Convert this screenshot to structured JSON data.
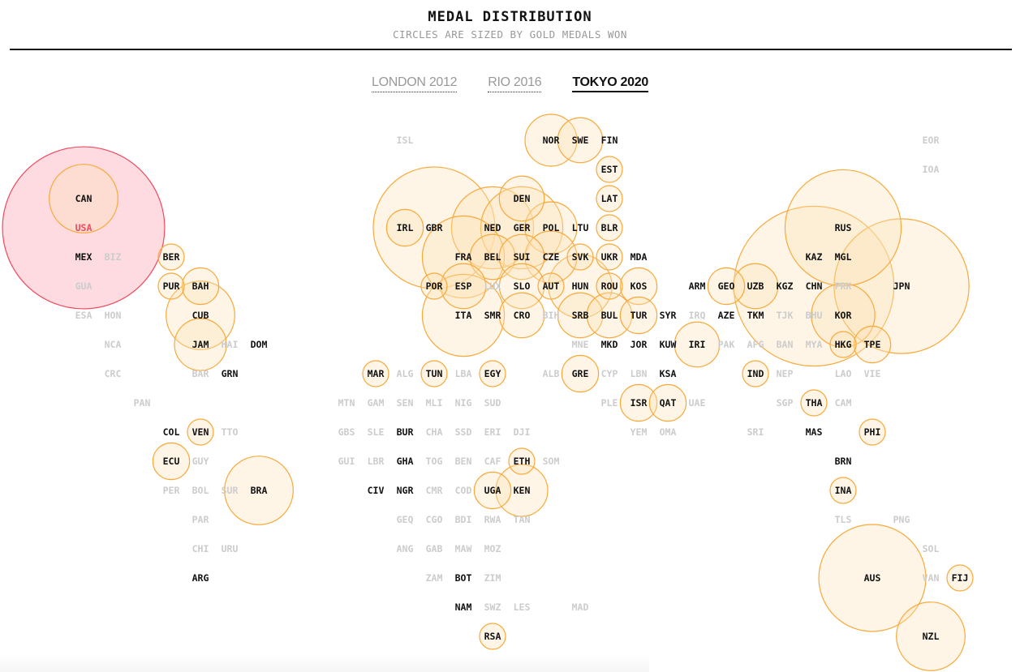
{
  "header": {
    "title": "MEDAL DISTRIBUTION",
    "subtitle": "CIRCLES ARE SIZED BY GOLD MEDALS WON"
  },
  "tabs": [
    {
      "label": "LONDON 2012",
      "active": false
    },
    {
      "label": "RIO 2016",
      "active": false
    },
    {
      "label": "TOKYO 2020",
      "active": true
    }
  ],
  "colors": {
    "circle_stroke": "#f8a93a",
    "circle_fill": "#fde3b8",
    "highlight_stroke": "#ef4a5f",
    "highlight_fill": "#fdd5da",
    "highlight_text": "#ef4a5f",
    "medal_text": "#111111",
    "no_medal_text": "#cccccc"
  },
  "chart_data": {
    "type": "tile-map bubble",
    "title": "MEDAL DISTRIBUTION",
    "subtitle": "CIRCLES ARE SIZED BY GOLD MEDALS WON",
    "edition": "TOKYO 2020",
    "highlighted": "USA",
    "countries": [
      {
        "code": "ISL",
        "gold": 0,
        "medal": false
      },
      {
        "code": "NOR",
        "gold": 4,
        "medal": true
      },
      {
        "code": "SWE",
        "gold": 3,
        "medal": true
      },
      {
        "code": "FIN",
        "gold": 0,
        "medal": true
      },
      {
        "code": "EOR",
        "gold": 0,
        "medal": false
      },
      {
        "code": "EST",
        "gold": 1,
        "medal": true
      },
      {
        "code": "IOA",
        "gold": 0,
        "medal": false
      },
      {
        "code": "CAN",
        "gold": 7,
        "medal": true
      },
      {
        "code": "DEN",
        "gold": 3,
        "medal": true
      },
      {
        "code": "LAT",
        "gold": 1,
        "medal": true
      },
      {
        "code": "USA",
        "gold": 39,
        "medal": true
      },
      {
        "code": "IRL",
        "gold": 2,
        "medal": true
      },
      {
        "code": "GBR",
        "gold": 22,
        "medal": true
      },
      {
        "code": "NED",
        "gold": 10,
        "medal": true
      },
      {
        "code": "GER",
        "gold": 10,
        "medal": true
      },
      {
        "code": "POL",
        "gold": 4,
        "medal": true
      },
      {
        "code": "LTU",
        "gold": 0,
        "medal": true
      },
      {
        "code": "BLR",
        "gold": 1,
        "medal": true
      },
      {
        "code": "RUS",
        "gold": 20,
        "medal": true
      },
      {
        "code": "MEX",
        "gold": 0,
        "medal": true
      },
      {
        "code": "BIZ",
        "gold": 0,
        "medal": false
      },
      {
        "code": "BER",
        "gold": 1,
        "medal": true
      },
      {
        "code": "FRA",
        "gold": 10,
        "medal": true
      },
      {
        "code": "BEL",
        "gold": 3,
        "medal": true
      },
      {
        "code": "SUI",
        "gold": 3,
        "medal": true
      },
      {
        "code": "CZE",
        "gold": 4,
        "medal": true
      },
      {
        "code": "SVK",
        "gold": 1,
        "medal": true
      },
      {
        "code": "UKR",
        "gold": 1,
        "medal": true
      },
      {
        "code": "MDA",
        "gold": 0,
        "medal": true
      },
      {
        "code": "KAZ",
        "gold": 0,
        "medal": true
      },
      {
        "code": "MGL",
        "gold": 0,
        "medal": true
      },
      {
        "code": "GUA",
        "gold": 0,
        "medal": false
      },
      {
        "code": "PUR",
        "gold": 1,
        "medal": true
      },
      {
        "code": "BAH",
        "gold": 2,
        "medal": true
      },
      {
        "code": "POR",
        "gold": 1,
        "medal": true
      },
      {
        "code": "ESP",
        "gold": 3,
        "medal": true
      },
      {
        "code": "LUX",
        "gold": 0,
        "medal": false
      },
      {
        "code": "SLO",
        "gold": 3,
        "medal": true
      },
      {
        "code": "AUT",
        "gold": 1,
        "medal": true
      },
      {
        "code": "HUN",
        "gold": 6,
        "medal": true
      },
      {
        "code": "ROU",
        "gold": 1,
        "medal": true
      },
      {
        "code": "KOS",
        "gold": 2,
        "medal": true
      },
      {
        "code": "ARM",
        "gold": 0,
        "medal": true
      },
      {
        "code": "GEO",
        "gold": 2,
        "medal": true
      },
      {
        "code": "UZB",
        "gold": 3,
        "medal": true
      },
      {
        "code": "KGZ",
        "gold": 0,
        "medal": true
      },
      {
        "code": "CHN",
        "gold": 38,
        "medal": true
      },
      {
        "code": "PRK",
        "gold": 0,
        "medal": false
      },
      {
        "code": "JPN",
        "gold": 27,
        "medal": true
      },
      {
        "code": "ESA",
        "gold": 0,
        "medal": false
      },
      {
        "code": "HON",
        "gold": 0,
        "medal": false
      },
      {
        "code": "CUB",
        "gold": 7,
        "medal": true
      },
      {
        "code": "ITA",
        "gold": 10,
        "medal": true
      },
      {
        "code": "SMR",
        "gold": 0,
        "medal": true
      },
      {
        "code": "CRO",
        "gold": 3,
        "medal": true
      },
      {
        "code": "BIH",
        "gold": 0,
        "medal": false
      },
      {
        "code": "SRB",
        "gold": 3,
        "medal": true
      },
      {
        "code": "BUL",
        "gold": 3,
        "medal": true
      },
      {
        "code": "TUR",
        "gold": 2,
        "medal": true
      },
      {
        "code": "SYR",
        "gold": 0,
        "medal": true
      },
      {
        "code": "IRQ",
        "gold": 0,
        "medal": false
      },
      {
        "code": "AZE",
        "gold": 0,
        "medal": true
      },
      {
        "code": "TKM",
        "gold": 0,
        "medal": true
      },
      {
        "code": "TJK",
        "gold": 0,
        "medal": false
      },
      {
        "code": "BHU",
        "gold": 0,
        "medal": false
      },
      {
        "code": "KOR",
        "gold": 6,
        "medal": true
      },
      {
        "code": "NCA",
        "gold": 0,
        "medal": false
      },
      {
        "code": "JAM",
        "gold": 4,
        "medal": true
      },
      {
        "code": "HAI",
        "gold": 0,
        "medal": false
      },
      {
        "code": "DOM",
        "gold": 0,
        "medal": true
      },
      {
        "code": "MNE",
        "gold": 0,
        "medal": false
      },
      {
        "code": "MKD",
        "gold": 0,
        "medal": true
      },
      {
        "code": "JOR",
        "gold": 0,
        "medal": true
      },
      {
        "code": "KUW",
        "gold": 0,
        "medal": true
      },
      {
        "code": "IRI",
        "gold": 3,
        "medal": true
      },
      {
        "code": "PAK",
        "gold": 0,
        "medal": false
      },
      {
        "code": "AFG",
        "gold": 0,
        "medal": false
      },
      {
        "code": "BAN",
        "gold": 0,
        "medal": false
      },
      {
        "code": "MYA",
        "gold": 0,
        "medal": false
      },
      {
        "code": "HKG",
        "gold": 1,
        "medal": true
      },
      {
        "code": "TPE",
        "gold": 2,
        "medal": true
      },
      {
        "code": "CRC",
        "gold": 0,
        "medal": false
      },
      {
        "code": "BAR",
        "gold": 0,
        "medal": false
      },
      {
        "code": "GRN",
        "gold": 0,
        "medal": true
      },
      {
        "code": "MAR",
        "gold": 1,
        "medal": true
      },
      {
        "code": "ALG",
        "gold": 0,
        "medal": false
      },
      {
        "code": "TUN",
        "gold": 1,
        "medal": true
      },
      {
        "code": "LBA",
        "gold": 0,
        "medal": false
      },
      {
        "code": "EGY",
        "gold": 1,
        "medal": true
      },
      {
        "code": "ALB",
        "gold": 0,
        "medal": false
      },
      {
        "code": "GRE",
        "gold": 2,
        "medal": true
      },
      {
        "code": "CYP",
        "gold": 0,
        "medal": false
      },
      {
        "code": "LBN",
        "gold": 0,
        "medal": false
      },
      {
        "code": "KSA",
        "gold": 0,
        "medal": true
      },
      {
        "code": "IND",
        "gold": 1,
        "medal": true
      },
      {
        "code": "NEP",
        "gold": 0,
        "medal": false
      },
      {
        "code": "LAO",
        "gold": 0,
        "medal": false
      },
      {
        "code": "VIE",
        "gold": 0,
        "medal": false
      },
      {
        "code": "PAN",
        "gold": 0,
        "medal": false
      },
      {
        "code": "MTN",
        "gold": 0,
        "medal": false
      },
      {
        "code": "GAM",
        "gold": 0,
        "medal": false
      },
      {
        "code": "SEN",
        "gold": 0,
        "medal": false
      },
      {
        "code": "MLI",
        "gold": 0,
        "medal": false
      },
      {
        "code": "NIG",
        "gold": 0,
        "medal": false
      },
      {
        "code": "SUD",
        "gold": 0,
        "medal": false
      },
      {
        "code": "PLE",
        "gold": 0,
        "medal": false
      },
      {
        "code": "ISR",
        "gold": 2,
        "medal": true
      },
      {
        "code": "QAT",
        "gold": 2,
        "medal": true
      },
      {
        "code": "UAE",
        "gold": 0,
        "medal": false
      },
      {
        "code": "SGP",
        "gold": 0,
        "medal": false
      },
      {
        "code": "THA",
        "gold": 1,
        "medal": true
      },
      {
        "code": "CAM",
        "gold": 0,
        "medal": false
      },
      {
        "code": "COL",
        "gold": 0,
        "medal": true
      },
      {
        "code": "VEN",
        "gold": 1,
        "medal": true
      },
      {
        "code": "TTO",
        "gold": 0,
        "medal": false
      },
      {
        "code": "GBS",
        "gold": 0,
        "medal": false
      },
      {
        "code": "SLE",
        "gold": 0,
        "medal": false
      },
      {
        "code": "BUR",
        "gold": 0,
        "medal": true
      },
      {
        "code": "CHA",
        "gold": 0,
        "medal": false
      },
      {
        "code": "SSD",
        "gold": 0,
        "medal": false
      },
      {
        "code": "ERI",
        "gold": 0,
        "medal": false
      },
      {
        "code": "DJI",
        "gold": 0,
        "medal": false
      },
      {
        "code": "YEM",
        "gold": 0,
        "medal": false
      },
      {
        "code": "OMA",
        "gold": 0,
        "medal": false
      },
      {
        "code": "SRI",
        "gold": 0,
        "medal": false
      },
      {
        "code": "MAS",
        "gold": 0,
        "medal": true
      },
      {
        "code": "PHI",
        "gold": 1,
        "medal": true
      },
      {
        "code": "ECU",
        "gold": 2,
        "medal": true
      },
      {
        "code": "GUY",
        "gold": 0,
        "medal": false
      },
      {
        "code": "GUI",
        "gold": 0,
        "medal": false
      },
      {
        "code": "LBR",
        "gold": 0,
        "medal": false
      },
      {
        "code": "GHA",
        "gold": 0,
        "medal": true
      },
      {
        "code": "TOG",
        "gold": 0,
        "medal": false
      },
      {
        "code": "BEN",
        "gold": 0,
        "medal": false
      },
      {
        "code": "CAF",
        "gold": 0,
        "medal": false
      },
      {
        "code": "ETH",
        "gold": 1,
        "medal": true
      },
      {
        "code": "SOM",
        "gold": 0,
        "medal": false
      },
      {
        "code": "BRN",
        "gold": 0,
        "medal": true
      },
      {
        "code": "PER",
        "gold": 0,
        "medal": false
      },
      {
        "code": "BOL",
        "gold": 0,
        "medal": false
      },
      {
        "code": "SUR",
        "gold": 0,
        "medal": false
      },
      {
        "code": "BRA",
        "gold": 7,
        "medal": true
      },
      {
        "code": "CIV",
        "gold": 0,
        "medal": true
      },
      {
        "code": "NGR",
        "gold": 0,
        "medal": true
      },
      {
        "code": "CMR",
        "gold": 0,
        "medal": false
      },
      {
        "code": "COD",
        "gold": 0,
        "medal": false
      },
      {
        "code": "UGA",
        "gold": 2,
        "medal": true
      },
      {
        "code": "KEN",
        "gold": 4,
        "medal": true
      },
      {
        "code": "INA",
        "gold": 1,
        "medal": true
      },
      {
        "code": "PAR",
        "gold": 0,
        "medal": false
      },
      {
        "code": "GEQ",
        "gold": 0,
        "medal": false
      },
      {
        "code": "CGO",
        "gold": 0,
        "medal": false
      },
      {
        "code": "BDI",
        "gold": 0,
        "medal": false
      },
      {
        "code": "RWA",
        "gold": 0,
        "medal": false
      },
      {
        "code": "TAN",
        "gold": 0,
        "medal": false
      },
      {
        "code": "TLS",
        "gold": 0,
        "medal": false
      },
      {
        "code": "PNG",
        "gold": 0,
        "medal": false
      },
      {
        "code": "CHI",
        "gold": 0,
        "medal": false
      },
      {
        "code": "URU",
        "gold": 0,
        "medal": false
      },
      {
        "code": "ANG",
        "gold": 0,
        "medal": false
      },
      {
        "code": "GAB",
        "gold": 0,
        "medal": false
      },
      {
        "code": "MAW",
        "gold": 0,
        "medal": false
      },
      {
        "code": "MOZ",
        "gold": 0,
        "medal": false
      },
      {
        "code": "SOL",
        "gold": 0,
        "medal": false
      },
      {
        "code": "ARG",
        "gold": 0,
        "medal": true
      },
      {
        "code": "ZAM",
        "gold": 0,
        "medal": false
      },
      {
        "code": "BOT",
        "gold": 0,
        "medal": true
      },
      {
        "code": "ZIM",
        "gold": 0,
        "medal": false
      },
      {
        "code": "AUS",
        "gold": 17,
        "medal": true
      },
      {
        "code": "VAN",
        "gold": 0,
        "medal": false
      },
      {
        "code": "FIJ",
        "gold": 1,
        "medal": true
      },
      {
        "code": "NAM",
        "gold": 0,
        "medal": true
      },
      {
        "code": "SWZ",
        "gold": 0,
        "medal": false
      },
      {
        "code": "LES",
        "gold": 0,
        "medal": false
      },
      {
        "code": "MAD",
        "gold": 0,
        "medal": false
      },
      {
        "code": "RSA",
        "gold": 1,
        "medal": true
      },
      {
        "code": "NZL",
        "gold": 7,
        "medal": true
      }
    ]
  }
}
